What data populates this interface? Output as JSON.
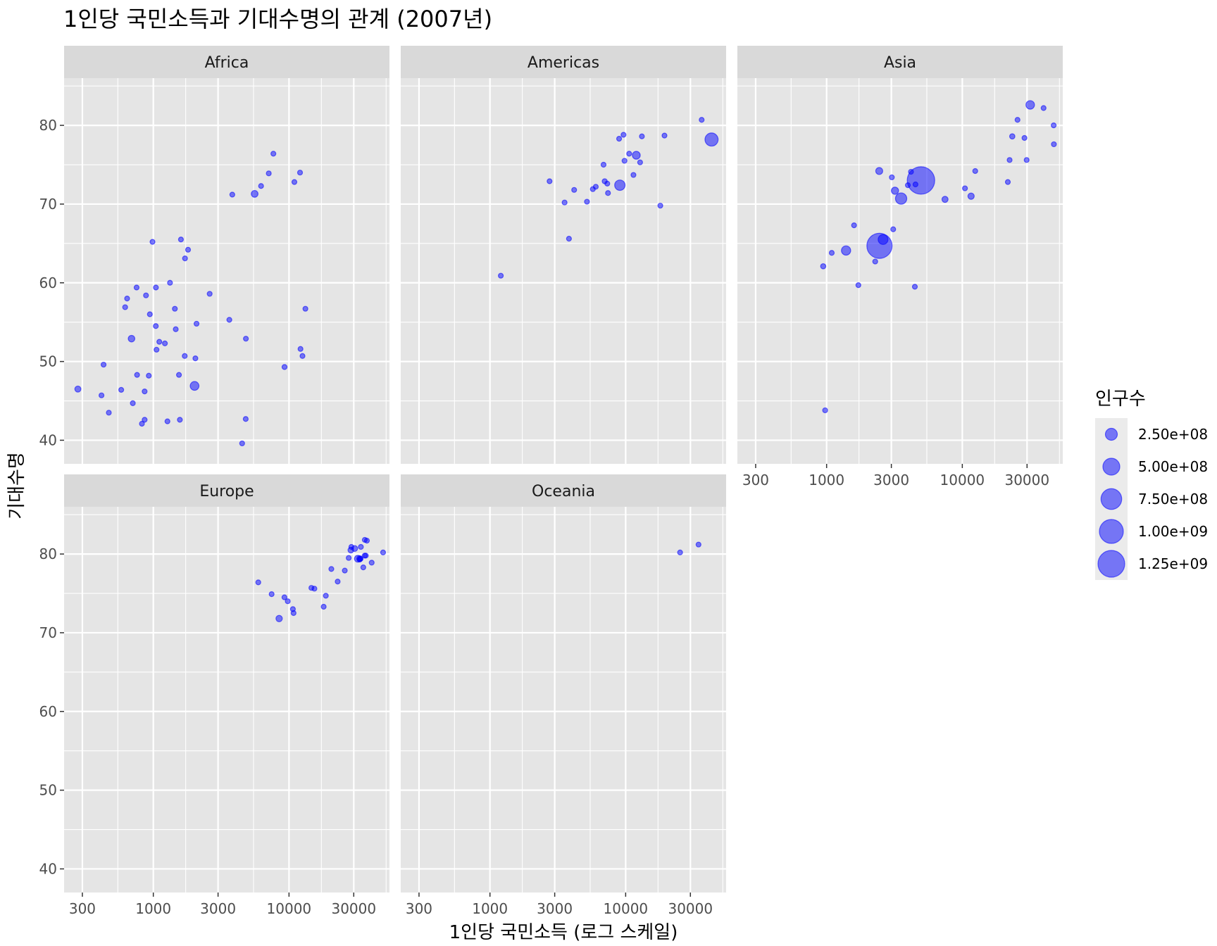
{
  "chart_data": {
    "type": "scatter",
    "title": "1인당 국민소득과 기대수명의 관계 (2007년)",
    "xlabel": "1인당 국민소득 (로그 스케일)",
    "ylabel": "기대수명",
    "x_scale": "log10",
    "xlim": [
      220,
      55000
    ],
    "ylim": [
      37,
      86
    ],
    "x_ticks": [
      300,
      1000,
      3000,
      10000,
      30000
    ],
    "x_tick_labels": [
      "300",
      "1000",
      "3000",
      "10000",
      "30000"
    ],
    "y_ticks": [
      40,
      50,
      60,
      70,
      80
    ],
    "y_tick_labels": [
      "40",
      "50",
      "60",
      "70",
      "80"
    ],
    "point_color": "#0000ff",
    "point_alpha": 0.5,
    "grid": true,
    "legend": {
      "title": "인구수",
      "placement": "right",
      "breaks": [
        250000000,
        500000000,
        750000000,
        1000000000,
        1250000000
      ],
      "labels": [
        "2.50e+08",
        "5.00e+08",
        "7.50e+08",
        "1.00e+09",
        "1.25e+09"
      ]
    },
    "panels": [
      {
        "name": "Africa",
        "points": [
          {
            "x": 6223,
            "y": 72.3,
            "pop": 33333216
          },
          {
            "x": 4797,
            "y": 42.7,
            "pop": 12420476
          },
          {
            "x": 1441,
            "y": 56.7,
            "pop": 8078314
          },
          {
            "x": 12570,
            "y": 50.7,
            "pop": 1639131
          },
          {
            "x": 1217,
            "y": 52.3,
            "pop": 14326203
          },
          {
            "x": 430,
            "y": 49.6,
            "pop": 8390505
          },
          {
            "x": 2042,
            "y": 50.4,
            "pop": 17696293
          },
          {
            "x": 706,
            "y": 44.7,
            "pop": 4369038
          },
          {
            "x": 1704,
            "y": 50.7,
            "pop": 10238807
          },
          {
            "x": 986,
            "y": 65.2,
            "pop": 710960
          },
          {
            "x": 278,
            "y": 46.5,
            "pop": 64606759
          },
          {
            "x": 3633,
            "y": 55.3,
            "pop": 3800610
          },
          {
            "x": 1545,
            "y": 48.3,
            "pop": 18013409
          },
          {
            "x": 2082,
            "y": 54.8,
            "pop": 496374
          },
          {
            "x": 5581,
            "y": 71.3,
            "pop": 80264543
          },
          {
            "x": 12154,
            "y": 51.6,
            "pop": 551201
          },
          {
            "x": 641,
            "y": 58.0,
            "pop": 4906585
          },
          {
            "x": 691,
            "y": 52.9,
            "pop": 76511887
          },
          {
            "x": 13206,
            "y": 56.7,
            "pop": 1454867
          },
          {
            "x": 753,
            "y": 59.4,
            "pop": 1688359
          },
          {
            "x": 1327,
            "y": 60.0,
            "pop": 22873338
          },
          {
            "x": 943,
            "y": 56.0,
            "pop": 9947814
          },
          {
            "x": 580,
            "y": 46.4,
            "pop": 1472041
          },
          {
            "x": 1463,
            "y": 54.1,
            "pop": 35610177
          },
          {
            "x": 1569,
            "y": 42.6,
            "pop": 2012649
          },
          {
            "x": 415,
            "y": 45.7,
            "pop": 3193942
          },
          {
            "x": 12057,
            "y": 74.0,
            "pop": 6036914
          },
          {
            "x": 1045,
            "y": 59.4,
            "pop": 19167654
          },
          {
            "x": 759,
            "y": 48.3,
            "pop": 13327079
          },
          {
            "x": 1043,
            "y": 54.5,
            "pop": 12031795
          },
          {
            "x": 1803,
            "y": 64.2,
            "pop": 3270065
          },
          {
            "x": 10957,
            "y": 72.8,
            "pop": 1250882
          },
          {
            "x": 3820,
            "y": 71.2,
            "pop": 33757175
          },
          {
            "x": 824,
            "y": 42.1,
            "pop": 19951656
          },
          {
            "x": 4811,
            "y": 52.9,
            "pop": 2055080
          },
          {
            "x": 620,
            "y": 56.9,
            "pop": 12894865
          },
          {
            "x": 2014,
            "y": 46.9,
            "pop": 135031164
          },
          {
            "x": 7670,
            "y": 76.4,
            "pop": 798094
          },
          {
            "x": 863,
            "y": 46.2,
            "pop": 8860588
          },
          {
            "x": 1598,
            "y": 65.5,
            "pop": 199579
          },
          {
            "x": 1712,
            "y": 63.1,
            "pop": 12267493
          },
          {
            "x": 863,
            "y": 42.6,
            "pop": 6144562
          },
          {
            "x": 926,
            "y": 48.2,
            "pop": 9118773
          },
          {
            "x": 9270,
            "y": 49.3,
            "pop": 43997828
          },
          {
            "x": 2602,
            "y": 58.6,
            "pop": 42292929
          },
          {
            "x": 4513,
            "y": 39.6,
            "pop": 1133066
          },
          {
            "x": 1107,
            "y": 52.5,
            "pop": 38139640
          },
          {
            "x": 883,
            "y": 58.4,
            "pop": 5701579
          },
          {
            "x": 7093,
            "y": 73.9,
            "pop": 10276158
          },
          {
            "x": 1056,
            "y": 51.5,
            "pop": 29170398
          },
          {
            "x": 1271,
            "y": 42.4,
            "pop": 11746035
          },
          {
            "x": 470,
            "y": 43.5,
            "pop": 12311143
          }
        ]
      },
      {
        "name": "Americas",
        "points": [
          {
            "x": 12779,
            "y": 75.3,
            "pop": 40301927
          },
          {
            "x": 3822,
            "y": 65.6,
            "pop": 9119152
          },
          {
            "x": 9066,
            "y": 72.4,
            "pop": 190010647
          },
          {
            "x": 36319,
            "y": 80.7,
            "pop": 33390141
          },
          {
            "x": 13172,
            "y": 78.6,
            "pop": 16284741
          },
          {
            "x": 7007,
            "y": 72.9,
            "pop": 44227550
          },
          {
            "x": 9645,
            "y": 78.8,
            "pop": 4133884
          },
          {
            "x": 8948,
            "y": 78.3,
            "pop": 11416987
          },
          {
            "x": 6025,
            "y": 72.2,
            "pop": 9319622
          },
          {
            "x": 6873,
            "y": 75.0,
            "pop": 13755680
          },
          {
            "x": 5728,
            "y": 71.9,
            "pop": 6939688
          },
          {
            "x": 5186,
            "y": 70.3,
            "pop": 12572928
          },
          {
            "x": 1202,
            "y": 60.9,
            "pop": 8502814
          },
          {
            "x": 3548,
            "y": 70.2,
            "pop": 7483763
          },
          {
            "x": 7321,
            "y": 72.6,
            "pop": 2780132
          },
          {
            "x": 11978,
            "y": 76.2,
            "pop": 108700891
          },
          {
            "x": 2749,
            "y": 72.9,
            "pop": 5675356
          },
          {
            "x": 9809,
            "y": 75.5,
            "pop": 3242173
          },
          {
            "x": 4173,
            "y": 71.8,
            "pop": 6667147
          },
          {
            "x": 7409,
            "y": 71.4,
            "pop": 28674757
          },
          {
            "x": 19329,
            "y": 78.7,
            "pop": 3942491
          },
          {
            "x": 18009,
            "y": 69.8,
            "pop": 1056608
          },
          {
            "x": 42952,
            "y": 78.2,
            "pop": 301139947
          },
          {
            "x": 10611,
            "y": 76.4,
            "pop": 3447496
          },
          {
            "x": 11416,
            "y": 73.7,
            "pop": 26084662
          }
        ]
      },
      {
        "name": "Asia",
        "points": [
          {
            "x": 975,
            "y": 43.8,
            "pop": 31889923
          },
          {
            "x": 29796,
            "y": 75.6,
            "pop": 708573
          },
          {
            "x": 1391,
            "y": 64.1,
            "pop": 150448339
          },
          {
            "x": 1714,
            "y": 59.7,
            "pop": 14131858
          },
          {
            "x": 4959,
            "y": 73.0,
            "pop": 1318683096
          },
          {
            "x": 39725,
            "y": 82.2,
            "pop": 6980412
          },
          {
            "x": 2452,
            "y": 64.7,
            "pop": 1110396331
          },
          {
            "x": 3541,
            "y": 70.7,
            "pop": 223547000
          },
          {
            "x": 11606,
            "y": 71.0,
            "pop": 69453570
          },
          {
            "x": 4471,
            "y": 59.5,
            "pop": 27499638
          },
          {
            "x": 25523,
            "y": 80.7,
            "pop": 6426679
          },
          {
            "x": 31656,
            "y": 82.6,
            "pop": 127467972
          },
          {
            "x": 4519,
            "y": 72.5,
            "pop": 6053193
          },
          {
            "x": 1593,
            "y": 67.3,
            "pop": 23301725
          },
          {
            "x": 23348,
            "y": 78.6,
            "pop": 49044790
          },
          {
            "x": 47307,
            "y": 77.6,
            "pop": 2505559
          },
          {
            "x": 10461,
            "y": 72.0,
            "pop": 3921278
          },
          {
            "x": 12452,
            "y": 74.2,
            "pop": 24821286
          },
          {
            "x": 3096,
            "y": 66.8,
            "pop": 2874127
          },
          {
            "x": 944,
            "y": 62.1,
            "pop": 47761980
          },
          {
            "x": 1091,
            "y": 63.8,
            "pop": 28901790
          },
          {
            "x": 22316,
            "y": 75.6,
            "pop": 3204897
          },
          {
            "x": 2606,
            "y": 65.5,
            "pop": 169270617
          },
          {
            "x": 3190,
            "y": 71.7,
            "pop": 91077287
          },
          {
            "x": 21655,
            "y": 72.8,
            "pop": 27601038
          },
          {
            "x": 47143,
            "y": 80.0,
            "pop": 4553009
          },
          {
            "x": 3970,
            "y": 72.4,
            "pop": 20378239
          },
          {
            "x": 4185,
            "y": 74.1,
            "pop": 19314747
          },
          {
            "x": 28718,
            "y": 78.4,
            "pop": 23174294
          },
          {
            "x": 7458,
            "y": 70.6,
            "pop": 65068149
          },
          {
            "x": 2442,
            "y": 74.2,
            "pop": 85262356
          },
          {
            "x": 3025,
            "y": 73.4,
            "pop": 4018332
          },
          {
            "x": 2281,
            "y": 62.7,
            "pop": 22211743
          }
        ]
      },
      {
        "name": "Europe",
        "points": [
          {
            "x": 5937,
            "y": 76.4,
            "pop": 3600523
          },
          {
            "x": 36126,
            "y": 79.8,
            "pop": 8199783
          },
          {
            "x": 33693,
            "y": 79.4,
            "pop": 10392226
          },
          {
            "x": 7446,
            "y": 74.9,
            "pop": 4552198
          },
          {
            "x": 10681,
            "y": 73.0,
            "pop": 7322858
          },
          {
            "x": 14619,
            "y": 75.7,
            "pop": 4493312
          },
          {
            "x": 22833,
            "y": 76.5,
            "pop": 10228744
          },
          {
            "x": 35278,
            "y": 78.3,
            "pop": 5468120
          },
          {
            "x": 33207,
            "y": 79.3,
            "pop": 5238460
          },
          {
            "x": 30470,
            "y": 80.7,
            "pop": 61083916
          },
          {
            "x": 32170,
            "y": 79.4,
            "pop": 82400996
          },
          {
            "x": 27538,
            "y": 79.5,
            "pop": 10706290
          },
          {
            "x": 18009,
            "y": 73.3,
            "pop": 9956108
          },
          {
            "x": 36181,
            "y": 81.8,
            "pop": 301931
          },
          {
            "x": 40676,
            "y": 78.9,
            "pop": 4109086
          },
          {
            "x": 28570,
            "y": 80.5,
            "pop": 58147733
          },
          {
            "x": 9254,
            "y": 74.5,
            "pop": 684736
          },
          {
            "x": 36798,
            "y": 79.8,
            "pop": 16570613
          },
          {
            "x": 49357,
            "y": 80.2,
            "pop": 4627926
          },
          {
            "x": 15390,
            "y": 75.6,
            "pop": 38518241
          },
          {
            "x": 20510,
            "y": 78.1,
            "pop": 10642836
          },
          {
            "x": 10808,
            "y": 72.5,
            "pop": 22276056
          },
          {
            "x": 9787,
            "y": 74.0,
            "pop": 10150265
          },
          {
            "x": 18679,
            "y": 74.7,
            "pop": 5447502
          },
          {
            "x": 25768,
            "y": 77.9,
            "pop": 2009245
          },
          {
            "x": 28821,
            "y": 80.9,
            "pop": 40448191
          },
          {
            "x": 33860,
            "y": 80.9,
            "pop": 9031088
          },
          {
            "x": 37506,
            "y": 81.7,
            "pop": 7554661
          },
          {
            "x": 8458,
            "y": 71.8,
            "pop": 71158647
          },
          {
            "x": 33203,
            "y": 79.4,
            "pop": 60776238
          }
        ]
      },
      {
        "name": "Oceania",
        "points": [
          {
            "x": 34435,
            "y": 81.2,
            "pop": 20434176
          },
          {
            "x": 25185,
            "y": 80.2,
            "pop": 4115771
          }
        ]
      }
    ]
  }
}
